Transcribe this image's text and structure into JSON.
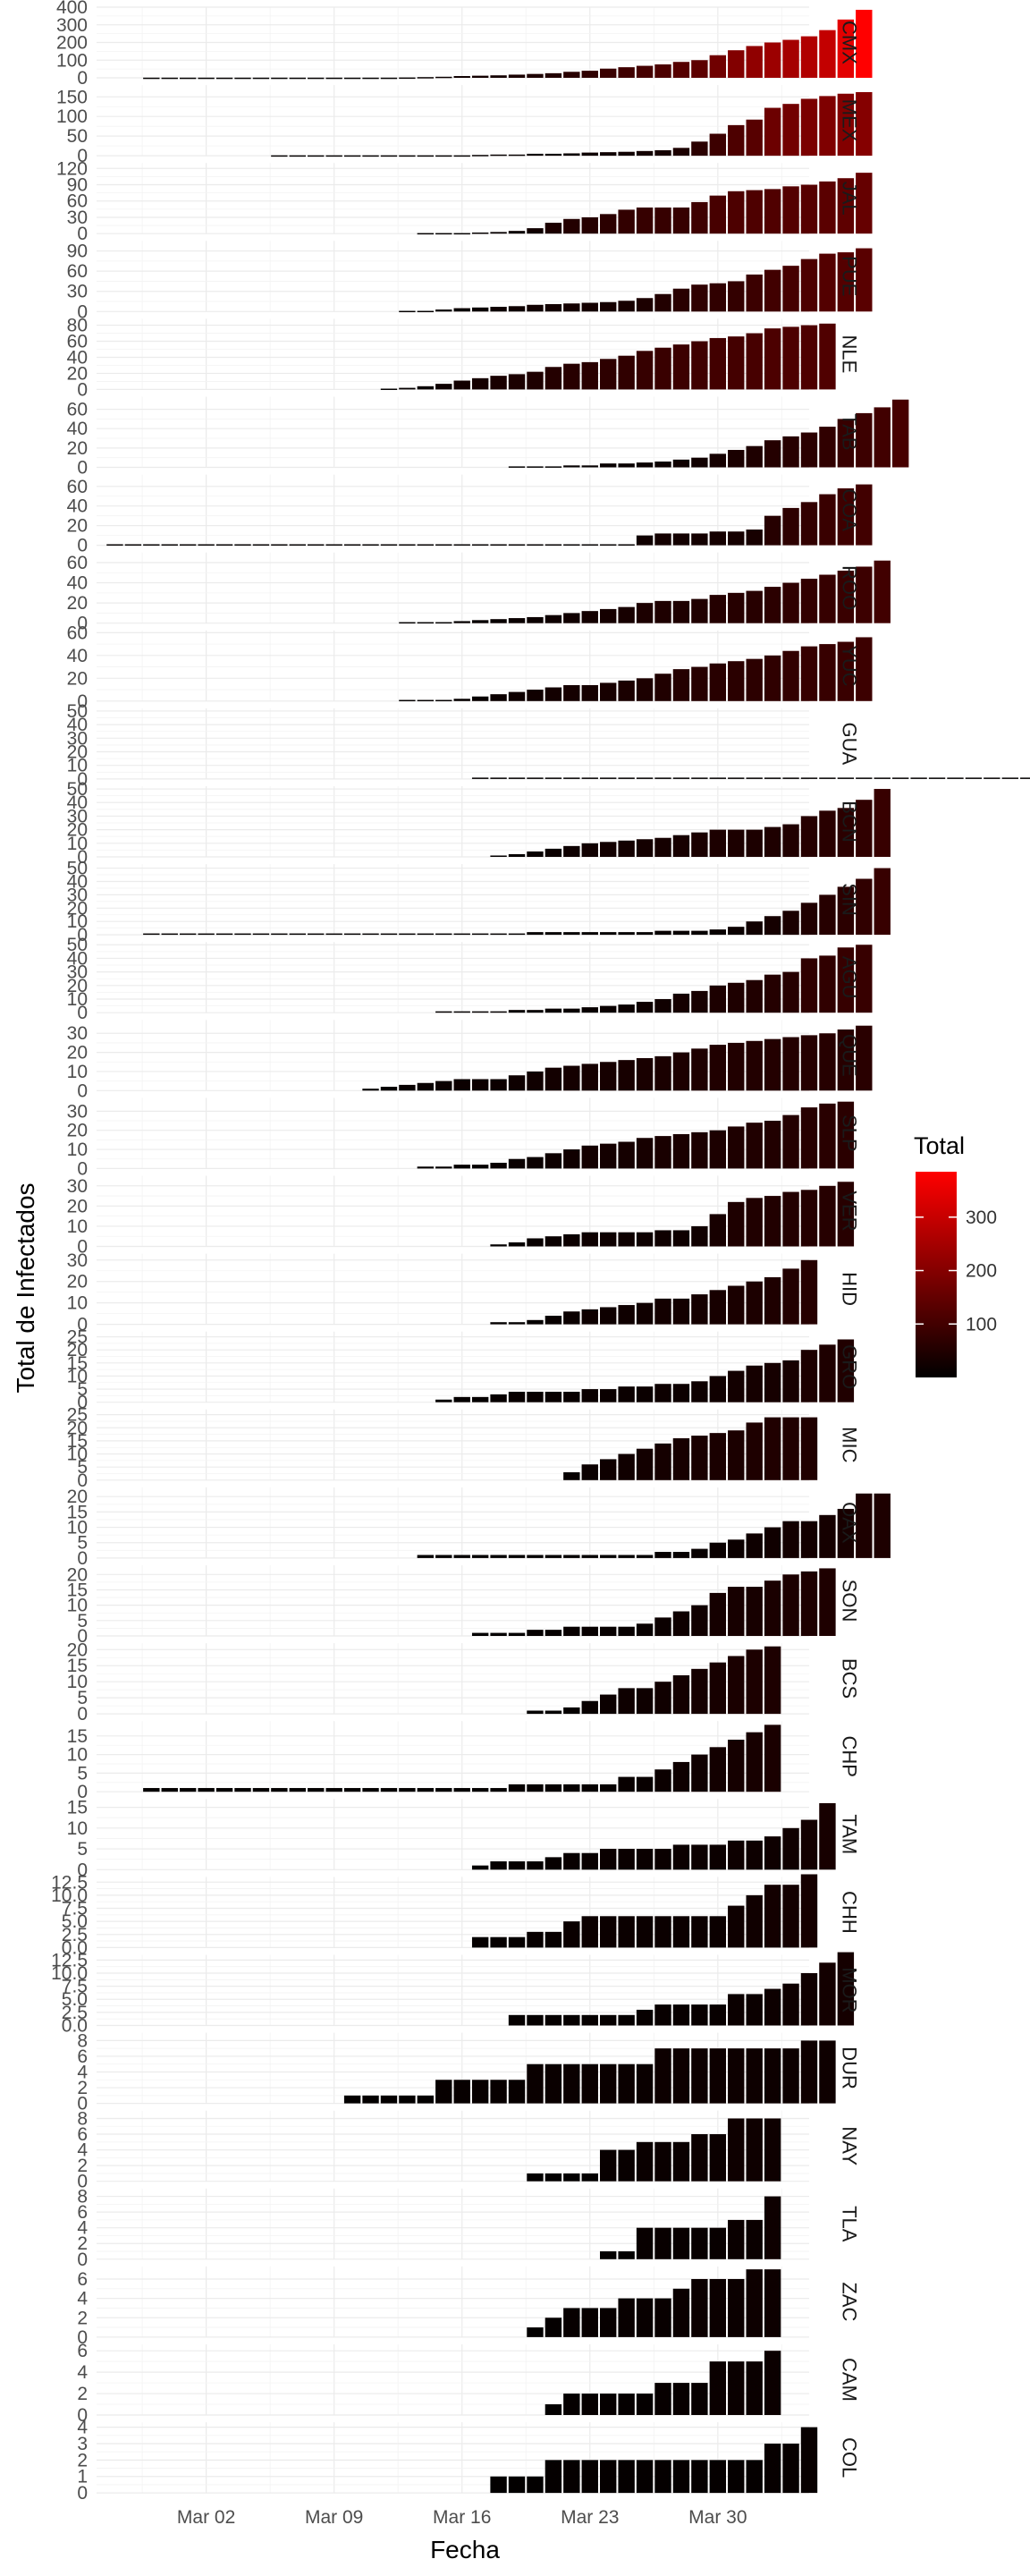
{
  "chart_data": {
    "type": "bar",
    "xlabel": "Fecha",
    "ylabel": "Total de Infectados",
    "legend": {
      "title": "Total",
      "placement": "right",
      "ticks": [
        100,
        200,
        300
      ],
      "range": [
        0,
        385
      ],
      "colors": [
        "#000000",
        "#ff0000"
      ]
    },
    "x_range": [
      "2020-02-25",
      "2020-04-04"
    ],
    "x_ticks": [
      {
        "date": "2020-03-02",
        "label": "Mar 02"
      },
      {
        "date": "2020-03-09",
        "label": "Mar 09"
      },
      {
        "date": "2020-03-16",
        "label": "Mar 16"
      },
      {
        "date": "2020-03-23",
        "label": "Mar 23"
      },
      {
        "date": "2020-03-30",
        "label": "Mar 30"
      }
    ],
    "series": [
      {
        "name": "CMX",
        "start": "2020-02-28",
        "ymax": 400,
        "yticks": [
          "0",
          "100",
          "200",
          "300",
          "400"
        ],
        "values": [
          1,
          1,
          1,
          1,
          1,
          1,
          1,
          1,
          1,
          1,
          1,
          1,
          1,
          1,
          2,
          4,
          6,
          10,
          12,
          14,
          18,
          22,
          26,
          34,
          40,
          52,
          60,
          68,
          76,
          90,
          100,
          128,
          156,
          180,
          200,
          215,
          235,
          270,
          330,
          385
        ]
      },
      {
        "name": "MEX",
        "start": "2020-03-06",
        "ymax": 180,
        "yticks": [
          "0",
          "50",
          "100",
          "150"
        ],
        "values": [
          1,
          1,
          1,
          1,
          1,
          1,
          1,
          1,
          1,
          1,
          1,
          2,
          3,
          3,
          5,
          5,
          6,
          8,
          9,
          10,
          12,
          14,
          20,
          36,
          56,
          78,
          92,
          122,
          132,
          145,
          152,
          158,
          162
        ]
      },
      {
        "name": "JAL",
        "start": "2020-03-14",
        "ymax": 130,
        "yticks": [
          "0",
          "30",
          "60",
          "90",
          "120"
        ],
        "values": [
          1,
          1,
          1,
          2,
          3,
          5,
          10,
          20,
          27,
          30,
          36,
          44,
          48,
          48,
          48,
          58,
          70,
          78,
          80,
          82,
          87,
          90,
          96,
          102,
          112
        ]
      },
      {
        "name": "PUE",
        "start": "2020-03-13",
        "ymax": 105,
        "yticks": [
          "0",
          "30",
          "60",
          "90"
        ],
        "values": [
          1,
          1,
          3,
          5,
          6,
          7,
          8,
          10,
          11,
          12,
          13,
          14,
          16,
          20,
          26,
          34,
          40,
          42,
          45,
          55,
          62,
          68,
          78,
          86,
          88,
          94
        ]
      },
      {
        "name": "NLE",
        "start": "2020-03-12",
        "ymax": 88,
        "yticks": [
          "0",
          "20",
          "40",
          "60",
          "80"
        ],
        "values": [
          1,
          2,
          4,
          7,
          11,
          14,
          17,
          19,
          22,
          28,
          32,
          34,
          38,
          42,
          48,
          52,
          56,
          60,
          64,
          66,
          70,
          76,
          78,
          80,
          82
        ]
      },
      {
        "name": "TAB",
        "start": "2020-03-19",
        "ymax": 73,
        "yticks": [
          "0",
          "20",
          "40",
          "60"
        ],
        "values": [
          1,
          1,
          1,
          2,
          2,
          4,
          4,
          5,
          6,
          8,
          10,
          14,
          18,
          22,
          28,
          32,
          36,
          42,
          50,
          56,
          62,
          70
        ]
      },
      {
        "name": "COA",
        "start": "2020-02-26",
        "ymax": 72,
        "yticks": [
          "0",
          "20",
          "40",
          "60"
        ],
        "values": [
          1,
          1,
          1,
          1,
          1,
          1,
          1,
          1,
          1,
          1,
          1,
          1,
          1,
          1,
          1,
          1,
          1,
          1,
          1,
          1,
          1,
          1,
          1,
          1,
          1,
          1,
          1,
          1,
          1,
          10,
          12,
          12,
          12,
          14,
          14,
          16,
          30,
          38,
          44,
          52,
          58,
          62
        ]
      },
      {
        "name": "ROO",
        "start": "2020-03-13",
        "ymax": 70,
        "yticks": [
          "0",
          "20",
          "40",
          "60"
        ],
        "values": [
          1,
          1,
          1,
          2,
          3,
          4,
          5,
          6,
          8,
          10,
          12,
          14,
          16,
          20,
          22,
          22,
          24,
          28,
          30,
          32,
          36,
          40,
          44,
          48,
          52,
          56,
          62
        ]
      },
      {
        "name": "YUC",
        "start": "2020-03-13",
        "ymax": 62,
        "yticks": [
          "0",
          "20",
          "40",
          "60"
        ],
        "values": [
          1,
          1,
          1,
          2,
          4,
          6,
          8,
          10,
          12,
          14,
          14,
          16,
          18,
          20,
          24,
          28,
          30,
          33,
          35,
          37,
          40,
          44,
          48,
          50,
          52,
          56
        ]
      },
      {
        "name": "GUA",
        "start": "2020-03-17",
        "ymax": 52,
        "yticks": [
          "0",
          "10",
          "20",
          "30",
          "40",
          "50"
        ],
        "values": [
          1,
          1,
          1,
          1,
          1,
          1,
          1,
          1,
          1,
          1,
          1,
          1,
          1,
          1,
          1,
          1,
          1,
          1,
          1,
          1,
          1,
          1,
          1,
          1,
          1,
          1,
          1,
          1,
          1,
          1,
          1,
          1,
          1,
          1,
          1,
          1,
          1,
          1,
          1,
          1,
          1,
          1,
          1,
          1,
          1,
          1,
          1,
          1,
          1,
          1,
          1,
          1,
          1,
          1,
          1,
          1,
          1,
          1,
          1,
          1,
          1,
          1,
          1,
          1,
          1,
          1,
          1,
          1,
          1,
          1,
          1,
          1,
          1,
          1,
          1,
          1,
          1,
          1,
          1,
          1,
          1,
          1,
          1,
          1,
          1,
          1,
          1,
          1,
          1,
          1,
          1,
          1,
          1,
          1,
          1,
          1,
          1,
          1,
          1,
          1
        ]
      },
      {
        "name": "BCN",
        "start": "2020-03-18",
        "ymax": 52,
        "yticks": [
          "0",
          "10",
          "20",
          "30",
          "40",
          "50"
        ],
        "values": [
          1,
          2,
          4,
          6,
          8,
          10,
          11,
          12,
          13,
          14,
          16,
          18,
          20,
          20,
          20,
          22,
          24,
          30,
          34,
          36,
          42,
          50
        ]
      },
      {
        "name": "SIN",
        "start": "2020-02-28",
        "ymax": 53,
        "yticks": [
          "0",
          "10",
          "20",
          "30",
          "40",
          "50"
        ],
        "values": [
          1,
          1,
          1,
          1,
          1,
          1,
          1,
          1,
          1,
          1,
          1,
          1,
          1,
          1,
          1,
          1,
          1,
          1,
          1,
          1,
          1,
          2,
          2,
          2,
          2,
          2,
          2,
          2,
          3,
          3,
          3,
          4,
          6,
          10,
          14,
          18,
          24,
          30,
          36,
          42,
          50
        ]
      },
      {
        "name": "AGU",
        "start": "2020-03-15",
        "ymax": 52,
        "yticks": [
          "0",
          "10",
          "20",
          "30",
          "40",
          "50"
        ],
        "values": [
          1,
          1,
          1,
          1,
          2,
          2,
          3,
          3,
          4,
          5,
          6,
          8,
          10,
          14,
          16,
          20,
          22,
          24,
          28,
          30,
          40,
          42,
          48,
          50
        ]
      },
      {
        "name": "QUE",
        "start": "2020-03-11",
        "ymax": 37,
        "yticks": [
          "0",
          "10",
          "20",
          "30"
        ],
        "values": [
          1,
          2,
          3,
          4,
          5,
          6,
          6,
          6,
          8,
          10,
          12,
          13,
          14,
          15,
          16,
          17,
          18,
          20,
          22,
          24,
          25,
          26,
          27,
          28,
          29,
          30,
          32,
          34
        ]
      },
      {
        "name": "SLP",
        "start": "2020-03-14",
        "ymax": 37,
        "yticks": [
          "0",
          "10",
          "20",
          "30"
        ],
        "values": [
          1,
          1,
          2,
          2,
          3,
          5,
          6,
          8,
          10,
          12,
          13,
          14,
          16,
          17,
          18,
          19,
          20,
          22,
          24,
          25,
          28,
          32,
          34,
          35
        ]
      },
      {
        "name": "VER",
        "start": "2020-03-18",
        "ymax": 35,
        "yticks": [
          "0",
          "10",
          "20",
          "30"
        ],
        "values": [
          1,
          2,
          4,
          5,
          6,
          7,
          7,
          7,
          7,
          8,
          8,
          10,
          16,
          22,
          24,
          25,
          27,
          28,
          30,
          32
        ]
      },
      {
        "name": "HID",
        "start": "2020-03-18",
        "ymax": 33,
        "yticks": [
          "0",
          "10",
          "20",
          "30"
        ],
        "values": [
          1,
          1,
          2,
          4,
          6,
          7,
          8,
          9,
          10,
          12,
          12,
          14,
          16,
          18,
          20,
          22,
          26,
          30
        ]
      },
      {
        "name": "GRO",
        "start": "2020-03-15",
        "ymax": 27,
        "yticks": [
          "0",
          "5",
          "10",
          "15",
          "20",
          "25"
        ],
        "values": [
          1,
          2,
          2,
          3,
          4,
          4,
          4,
          4,
          5,
          5,
          6,
          6,
          7,
          7,
          8,
          10,
          12,
          14,
          15,
          16,
          20,
          22,
          24
        ]
      },
      {
        "name": "MIC",
        "start": "2020-03-22",
        "ymax": 27,
        "yticks": [
          "0",
          "5",
          "10",
          "15",
          "20",
          "25"
        ],
        "values": [
          3,
          6,
          8,
          10,
          12,
          14,
          16,
          17,
          18,
          19,
          22,
          24,
          24,
          24
        ]
      },
      {
        "name": "OAX",
        "start": "2020-03-14",
        "ymax": 23,
        "yticks": [
          "0",
          "5",
          "10",
          "15",
          "20"
        ],
        "values": [
          1,
          1,
          1,
          1,
          1,
          1,
          1,
          1,
          1,
          1,
          1,
          1,
          1,
          2,
          2,
          3,
          5,
          6,
          8,
          10,
          12,
          12,
          14,
          16,
          21,
          21
        ]
      },
      {
        "name": "SON",
        "start": "2020-03-17",
        "ymax": 23,
        "yticks": [
          "0",
          "5",
          "10",
          "15",
          "20"
        ],
        "values": [
          1,
          1,
          1,
          2,
          2,
          3,
          3,
          3,
          3,
          4,
          6,
          8,
          10,
          14,
          16,
          16,
          18,
          20,
          21,
          22
        ]
      },
      {
        "name": "BCS",
        "start": "2020-03-20",
        "ymax": 22,
        "yticks": [
          "0",
          "5",
          "10",
          "15",
          "20"
        ],
        "values": [
          1,
          1,
          2,
          4,
          6,
          8,
          8,
          10,
          12,
          14,
          16,
          18,
          20,
          21
        ]
      },
      {
        "name": "CHP",
        "start": "2020-02-28",
        "ymax": 19,
        "yticks": [
          "0",
          "5",
          "10",
          "15"
        ],
        "values": [
          1,
          1,
          1,
          1,
          1,
          1,
          1,
          1,
          1,
          1,
          1,
          1,
          1,
          1,
          1,
          1,
          1,
          1,
          1,
          1,
          2,
          2,
          2,
          2,
          2,
          2,
          4,
          4,
          6,
          8,
          10,
          12,
          14,
          16,
          18
        ]
      },
      {
        "name": "TAM",
        "start": "2020-03-17",
        "ymax": 17,
        "yticks": [
          "0",
          "5",
          "10",
          "15"
        ],
        "values": [
          1,
          2,
          2,
          2,
          3,
          4,
          4,
          5,
          5,
          5,
          5,
          6,
          6,
          6,
          7,
          7,
          8,
          10,
          12,
          16
        ]
      },
      {
        "name": "CHH",
        "start": "2020-03-17",
        "ymax": 13.5,
        "yticks": [
          "0.0",
          "2.5",
          "5.0",
          "7.5",
          "10.0",
          "12.5"
        ],
        "values": [
          2,
          2,
          2,
          3,
          3,
          5,
          6,
          6,
          6,
          6,
          6,
          6,
          6,
          6,
          8,
          10,
          12,
          12,
          14
        ]
      },
      {
        "name": "MOR",
        "start": "2020-03-19",
        "ymax": 13.5,
        "yticks": [
          "0.0",
          "2.5",
          "5.0",
          "7.5",
          "10.0",
          "12.5"
        ],
        "values": [
          2,
          2,
          2,
          2,
          2,
          2,
          2,
          3,
          4,
          4,
          4,
          4,
          6,
          6,
          7,
          8,
          10,
          12,
          14
        ]
      },
      {
        "name": "DUR",
        "start": "2020-03-10",
        "ymax": 9,
        "yticks": [
          "0",
          "2",
          "4",
          "6",
          "8"
        ],
        "values": [
          1,
          1,
          1,
          1,
          1,
          3,
          3,
          3,
          3,
          3,
          5,
          5,
          5,
          5,
          5,
          5,
          5,
          7,
          7,
          7,
          7,
          7,
          7,
          7,
          7,
          8,
          8
        ]
      },
      {
        "name": "NAY",
        "start": "2020-03-20",
        "ymax": 9,
        "yticks": [
          "0",
          "2",
          "4",
          "6",
          "8"
        ],
        "values": [
          1,
          1,
          1,
          1,
          4,
          4,
          5,
          5,
          5,
          6,
          6,
          8,
          8,
          8
        ]
      },
      {
        "name": "TLA",
        "start": "2020-03-24",
        "ymax": 9,
        "yticks": [
          "0",
          "2",
          "4",
          "6",
          "8"
        ],
        "values": [
          1,
          1,
          4,
          4,
          4,
          4,
          4,
          5,
          5,
          8
        ]
      },
      {
        "name": "ZAC",
        "start": "2020-03-20",
        "ymax": 7.3,
        "yticks": [
          "0",
          "2",
          "4",
          "6"
        ],
        "values": [
          1,
          2,
          3,
          3,
          3,
          4,
          4,
          4,
          5,
          6,
          6,
          6,
          7,
          7
        ]
      },
      {
        "name": "CAM",
        "start": "2020-03-21",
        "ymax": 6.6,
        "yticks": [
          "0",
          "2",
          "4",
          "6"
        ],
        "values": [
          1,
          2,
          2,
          2,
          2,
          2,
          3,
          3,
          3,
          5,
          5,
          5,
          6
        ]
      },
      {
        "name": "COL",
        "start": "2020-03-18",
        "ymax": 4.3,
        "yticks": [
          "0",
          "1",
          "2",
          "3",
          "4"
        ],
        "values": [
          1,
          1,
          1,
          2,
          2,
          2,
          2,
          2,
          2,
          2,
          2,
          2,
          2,
          2,
          2,
          3,
          3,
          4
        ]
      }
    ]
  }
}
